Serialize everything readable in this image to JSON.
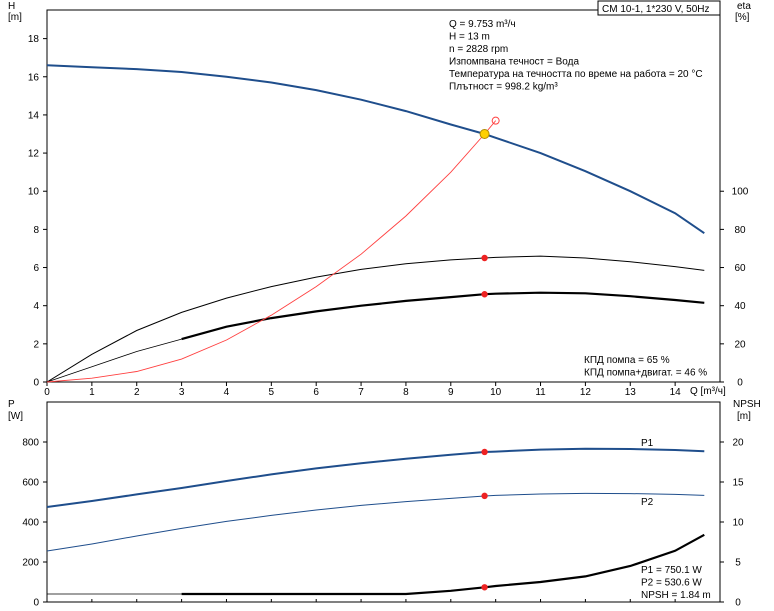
{
  "chart_data": [
    {
      "type": "line",
      "title_box": "CM 10-1, 1*230 V, 50Hz",
      "xlabel": "Q [m³/ч]",
      "xlim": [
        0,
        15
      ],
      "xticks": [
        "0",
        "1",
        "2",
        "3",
        "4",
        "5",
        "6",
        "7",
        "8",
        "9",
        "10",
        "11",
        "12",
        "13",
        "14"
      ],
      "y_left": {
        "label_top": "H",
        "label_unit": "[m]",
        "lim": [
          0,
          19.5
        ],
        "ticks": [
          "0",
          "2",
          "4",
          "6",
          "8",
          "10",
          "12",
          "14",
          "16",
          "18"
        ]
      },
      "y_right": {
        "label_top": "eta",
        "label_unit": "[%]",
        "lim": [
          0,
          195
        ],
        "ticks": [
          "0",
          "20",
          "40",
          "60",
          "80",
          "100"
        ]
      },
      "info_lines": [
        "Q = 9.753 m³/ч",
        "H = 13 m",
        "n = 2828 rpm",
        "Изпомпвана течност = Вода",
        "Температура на течността по време на работа = 20 °C",
        "Плътност = 998.2 kg/m³"
      ],
      "eff_lines": [
        "КПД помпа = 65 %",
        "КПД помпа+двигат. = 46 %"
      ],
      "series": [
        {
          "color": "#1f4e8c",
          "x": [
            0,
            1,
            2,
            3,
            4,
            5,
            6,
            7,
            8,
            9,
            9.753,
            10,
            11,
            12,
            13,
            14,
            14.65
          ],
          "y": [
            16.6,
            16.5,
            16.4,
            16.25,
            16.0,
            15.7,
            15.3,
            14.8,
            14.2,
            13.5,
            13.0,
            12.8,
            12.0,
            11.05,
            10.0,
            8.85,
            7.8
          ]
        },
        {
          "color": "#000000",
          "x": [
            0,
            1,
            2,
            3,
            4,
            5,
            6,
            7,
            8,
            9,
            9.753,
            10,
            11,
            12,
            13,
            14,
            14.65
          ],
          "y": [
            0,
            14.5,
            27,
            36.5,
            44,
            50,
            55,
            59,
            62,
            64,
            65,
            65.3,
            66,
            65,
            63,
            60.5,
            58.5
          ]
        },
        {
          "color": "#000000",
          "x": [
            3,
            4,
            5,
            6,
            7,
            8,
            9,
            9.753,
            10,
            11,
            12,
            13,
            14,
            14.65
          ],
          "y": [
            22.5,
            29,
            33.5,
            37,
            40,
            42.5,
            44.5,
            46,
            46.3,
            46.8,
            46.5,
            45,
            43,
            41.5
          ]
        },
        {
          "color": "#ff4040",
          "x": [
            0,
            1,
            2,
            3,
            4,
            5,
            6,
            7,
            8,
            9,
            9.753,
            10
          ],
          "y": [
            0,
            0.2,
            0.55,
            1.2,
            2.2,
            3.5,
            5.0,
            6.7,
            8.7,
            11.0,
            13.0,
            13.7
          ]
        }
      ],
      "thin_series": [
        {
          "x": [
            0,
            1,
            2,
            3
          ],
          "y": [
            0,
            8,
            16,
            22.5
          ]
        }
      ],
      "markers": [
        {
          "x": 9.753,
          "y": 13.0,
          "kind": "duty"
        },
        {
          "x": 9.753,
          "y": 65,
          "kind": "red",
          "axis": "right"
        },
        {
          "x": 9.753,
          "y": 46,
          "kind": "red",
          "axis": "right"
        },
        {
          "x": 10.0,
          "y": 13.7,
          "kind": "open"
        }
      ]
    },
    {
      "type": "line",
      "y_left": {
        "label_top": "P",
        "label_unit": "[W]",
        "lim": [
          0,
          1000
        ],
        "ticks": [
          "0",
          "200",
          "400",
          "600",
          "800"
        ]
      },
      "y_right": {
        "label_top": "NPSH",
        "label_unit": "[m]",
        "lim": [
          0,
          25
        ],
        "ticks": [
          "0",
          "5",
          "10",
          "15",
          "20"
        ]
      },
      "xlim": [
        0,
        15
      ],
      "series": [
        {
          "name": "P1",
          "color": "#1f4e8c",
          "x": [
            0,
            1,
            2,
            3,
            4,
            5,
            6,
            7,
            8,
            9,
            9.753,
            10,
            11,
            12,
            13,
            14,
            14.65
          ],
          "y": [
            475,
            505,
            538,
            570,
            605,
            638,
            668,
            694,
            716,
            736,
            750,
            752,
            762,
            766,
            765,
            760,
            754
          ]
        },
        {
          "name": "P2",
          "color": "#1f4e8c",
          "x": [
            0,
            1,
            2,
            3,
            4,
            5,
            6,
            7,
            8,
            9,
            9.753,
            10,
            11,
            12,
            13,
            14,
            14.65
          ],
          "y": [
            255,
            290,
            330,
            368,
            403,
            433,
            460,
            483,
            502,
            518,
            530,
            533,
            540,
            543,
            542,
            538,
            533
          ]
        },
        {
          "name": "NPSH",
          "color": "#000000",
          "x": [
            3,
            4,
            5,
            6,
            7,
            8,
            9,
            9.753,
            10,
            11,
            12,
            13,
            14,
            14.65
          ],
          "y": [
            1.0,
            1.0,
            1.0,
            1.0,
            1.0,
            1.0,
            1.4,
            1.84,
            2.0,
            2.5,
            3.2,
            4.5,
            6.4,
            8.4
          ]
        }
      ],
      "thin_series": [
        {
          "x": [
            0,
            3
          ],
          "y": [
            1.0,
            1.0
          ]
        }
      ],
      "markers": [
        {
          "x": 9.753,
          "y": 750.1,
          "kind": "red"
        },
        {
          "x": 9.753,
          "y": 530.6,
          "kind": "red"
        },
        {
          "x": 9.753,
          "y": 1.84,
          "kind": "red",
          "axis": "right"
        }
      ],
      "legend": [
        "P1",
        "P2"
      ],
      "info_lines": [
        "P1 = 750.1 W",
        "P2 = 530.6 W",
        "NPSH = 1.84 m"
      ]
    }
  ]
}
